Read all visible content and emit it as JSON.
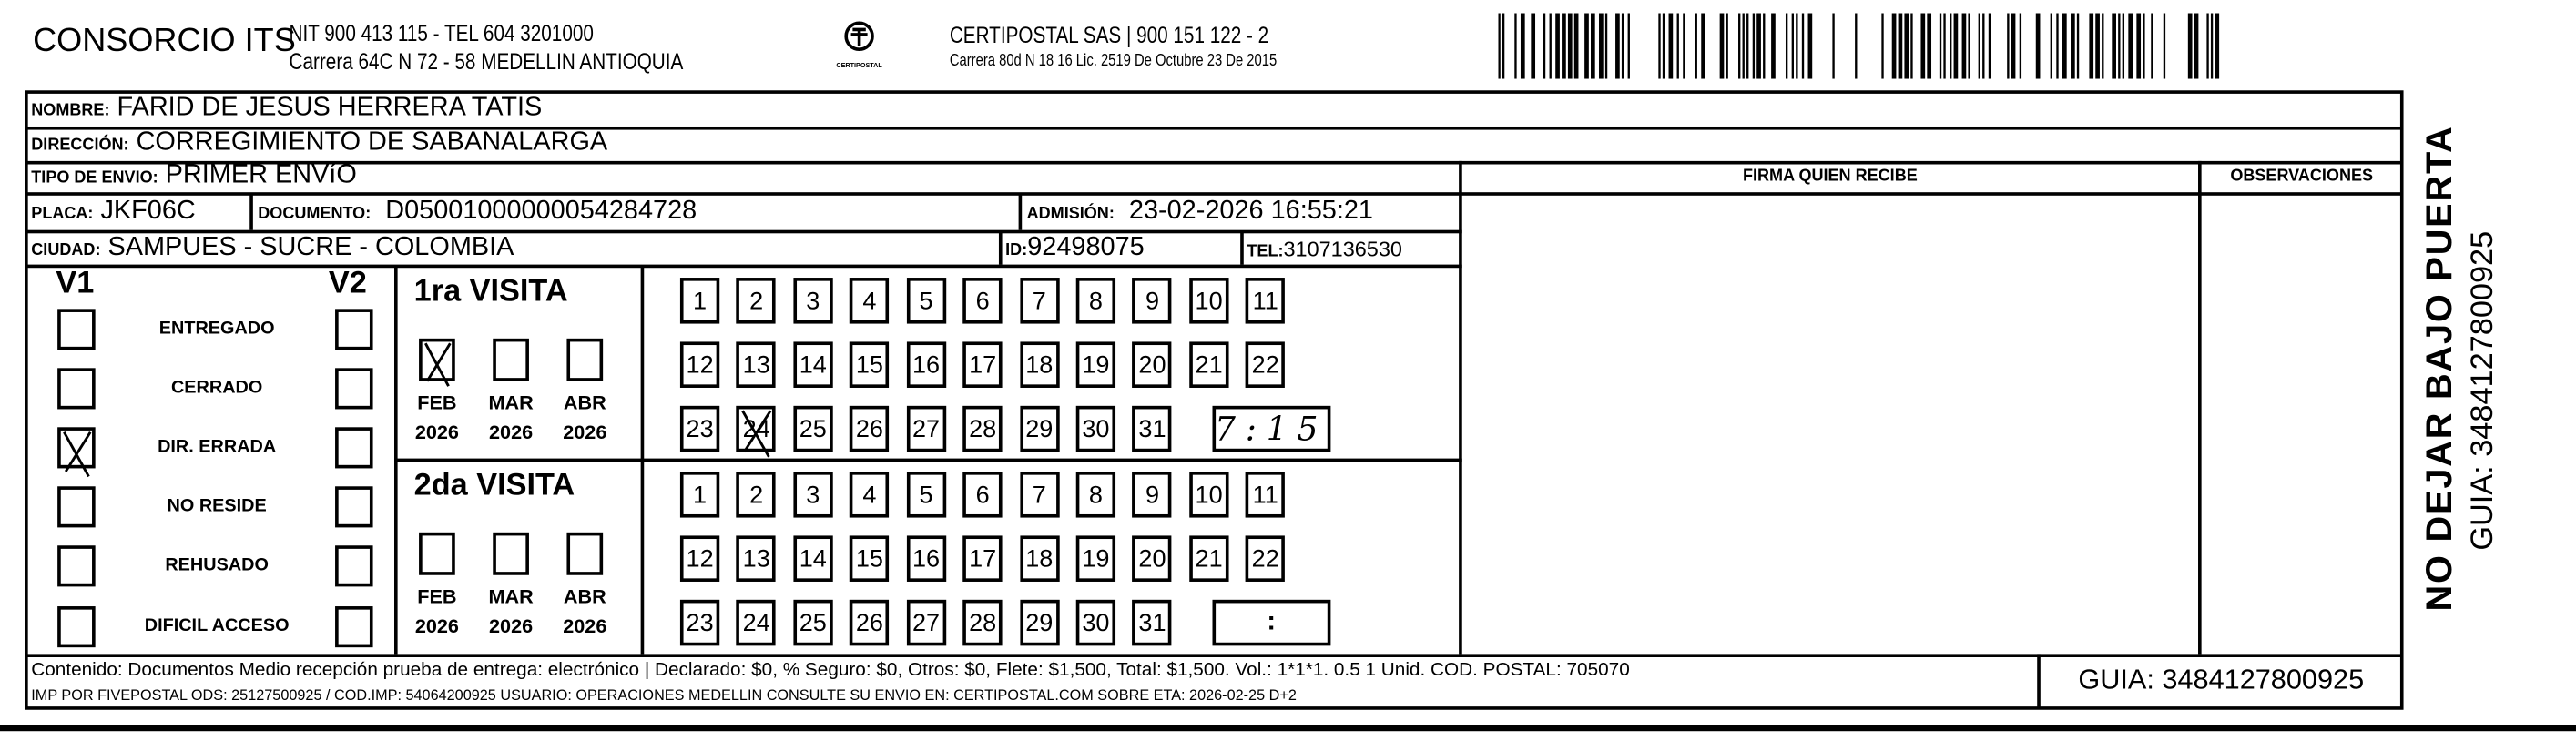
{
  "header": {
    "company": "CONSORCIO ITS",
    "company_line1": "NIT 900 413 115 - TEL 604 3201000",
    "company_line2": "Carrera 64C N 72 - 58 MEDELLIN ANTIOQUIA",
    "logo_icon": "certipostal-logo-icon",
    "logo_text": "CERTIPOSTAL",
    "carrier_line1": "CERTIPOSTAL SAS | 900 151 122 - 2",
    "carrier_line2": "Carrera 80d N 18 16  Lic. 2519 De Octubre 23 De 2015",
    "barcode_icon": "barcode-icon"
  },
  "recipient": {
    "nombre_label": "NOMBRE:",
    "nombre": "FARID DE JESUS HERRERA TATIS",
    "direccion_label": "DIRECCIÓN:",
    "direccion": "CORREGIMIENTO DE SABANALARGA",
    "tipo_label": "TIPO DE ENVIO:",
    "tipo": "PRIMER ENVíO",
    "placa_label": "PLACA:",
    "placa": "JKF06C",
    "documento_label": "DOCUMENTO:",
    "documento": "D05001000000054284728",
    "admision_label": "ADMISIÓN:",
    "admision": "23-02-2026 16:55:21",
    "ciudad_label": "CIUDAD:",
    "ciudad": "SAMPUES - SUCRE - COLOMBIA",
    "id_label": "ID:",
    "id": "92498075",
    "tel_label": "TEL:",
    "tel": "3107136530"
  },
  "signature": {
    "firma_label": "FIRMA QUIEN RECIBE",
    "observaciones_label": "OBSERVACIONES"
  },
  "status": {
    "v1_label": "V1",
    "v2_label": "V2",
    "items": [
      {
        "label": "ENTREGADO",
        "v1": false,
        "v2": false
      },
      {
        "label": "CERRADO",
        "v1": false,
        "v2": false
      },
      {
        "label": "DIR. ERRADA",
        "v1": true,
        "v2": false
      },
      {
        "label": "NO RESIDE",
        "v1": false,
        "v2": false
      },
      {
        "label": "REHUSADO",
        "v1": false,
        "v2": false
      },
      {
        "label": "DIFICIL ACCESO",
        "v1": false,
        "v2": false
      }
    ]
  },
  "visits": [
    {
      "title": "1ra VISITA",
      "months": [
        {
          "m": "FEB",
          "y": "2026",
          "checked": true
        },
        {
          "m": "MAR",
          "y": "2026",
          "checked": false
        },
        {
          "m": "ABR",
          "y": "2026",
          "checked": false
        }
      ],
      "marked_day": 24,
      "time": "7:15"
    },
    {
      "title": "2da VISITA",
      "months": [
        {
          "m": "FEB",
          "y": "2026",
          "checked": false
        },
        {
          "m": "MAR",
          "y": "2026",
          "checked": false
        },
        {
          "m": "ABR",
          "y": "2026",
          "checked": false
        }
      ],
      "marked_day": null,
      "time": ":"
    }
  ],
  "footer": {
    "contenido": "Contenido: Documentos Medio recepción prueba de entrega: electrónico | Declarado: $0, % Seguro: $0, Otros: $0, Flete: $1,500, Total: $1,500. Vol.: 1*1*1. 0.5  1 Unid. COD. POSTAL: 705070",
    "imp": "IMP POR FIVEPOSTAL ODS: 25127500925 / COD.IMP: 54064200925 USUARIO: OPERACIONES MEDELLIN CONSULTE SU ENVIO EN: CERTIPOSTAL.COM SOBRE ETA: 2026-02-25 D+2",
    "guia": "GUIA: 3484127800925"
  },
  "side": {
    "warning": "NO DEJAR BAJO PUERTA",
    "guia": "GUIA: 3484127800925"
  }
}
